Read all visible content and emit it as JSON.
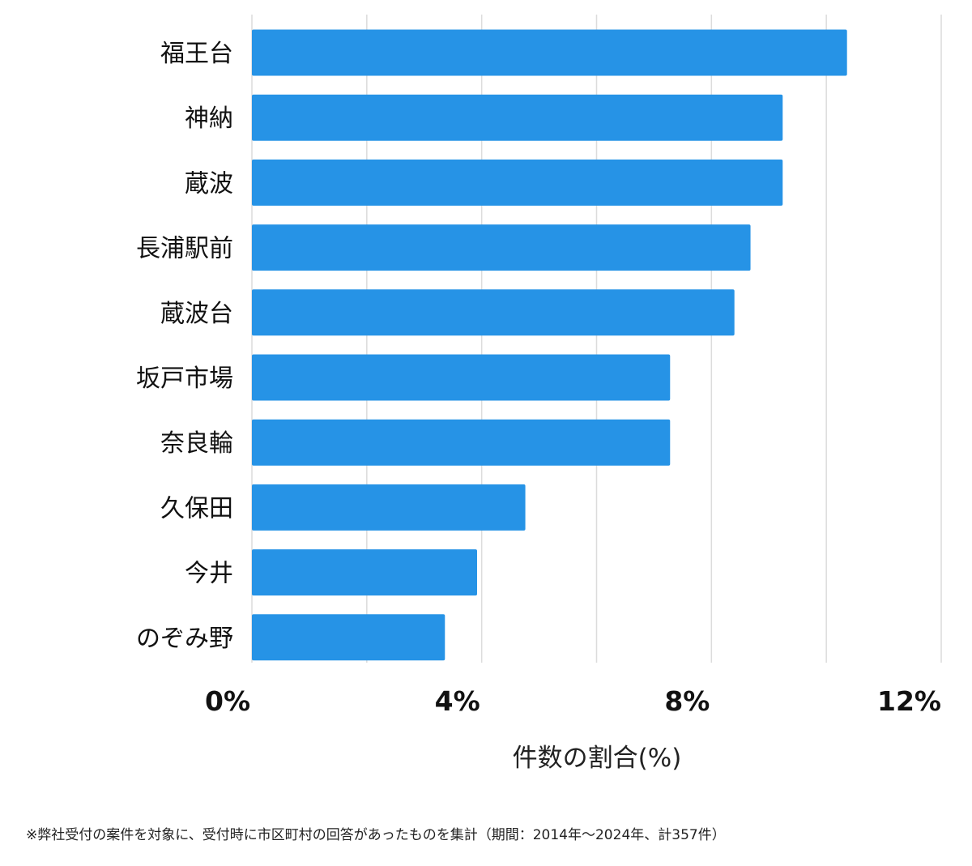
{
  "chart_data": {
    "type": "bar",
    "orientation": "horizontal",
    "categories": [
      "福王台",
      "神納",
      "蔵波",
      "長浦駅前",
      "蔵波台",
      "坂戸市場",
      "奈良輪",
      "久保田",
      "今井",
      "のぞみ野"
    ],
    "values": [
      10.36,
      9.24,
      9.24,
      8.68,
      8.4,
      7.28,
      7.28,
      4.76,
      3.92,
      3.36
    ],
    "xlabel": "件数の割合(%)",
    "xlim": [
      0,
      12
    ],
    "xticks": [
      0,
      4,
      8,
      12
    ],
    "xtick_labels": [
      "0%",
      "4%",
      "8%",
      "12%"
    ],
    "gridlines_every": 2,
    "grid": true,
    "bar_color": "#2693e6"
  },
  "footnote": "※弊社受付の案件を対象に、受付時に市区町村の回答があったものを集計（期間：2014年～2024年、計357件）"
}
